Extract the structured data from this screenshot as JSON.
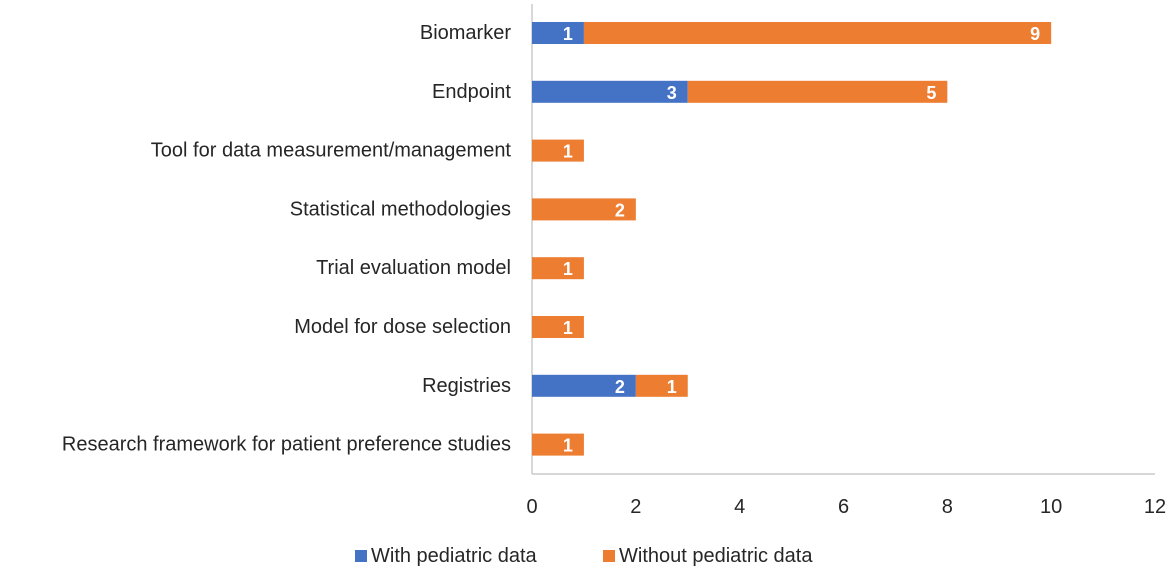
{
  "chart_data": {
    "type": "bar",
    "orientation": "horizontal",
    "stacked": true,
    "title": "",
    "xlabel": "",
    "ylabel": "",
    "xlim": [
      0,
      12
    ],
    "xticks": [
      0,
      2,
      4,
      6,
      8,
      10,
      12
    ],
    "grid": false,
    "legend_position": "bottom",
    "categories": [
      "Biomarker",
      "Endpoint",
      "Tool for data measurement/management",
      "Statistical methodologies",
      "Trial evaluation model",
      "Model for dose selection",
      "Registries",
      "Research framework for patient preference studies"
    ],
    "series": [
      {
        "name": "With pediatric data",
        "color": "#4472C4",
        "values": [
          1,
          3,
          0,
          0,
          0,
          0,
          2,
          0
        ]
      },
      {
        "name": "Without pediatric data",
        "color": "#ED7D31",
        "values": [
          9,
          5,
          1,
          2,
          1,
          1,
          1,
          1
        ]
      }
    ]
  }
}
